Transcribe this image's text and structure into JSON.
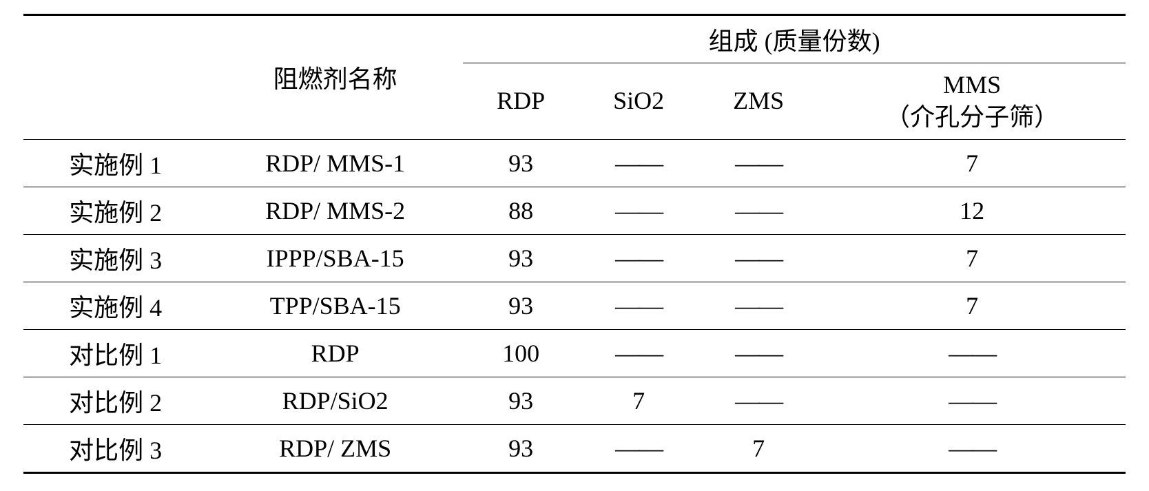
{
  "table": {
    "headers": {
      "col1_empty": "",
      "col2": "阻燃剂名称",
      "group_header": "组成 (质量份数)",
      "sub_col1": "RDP",
      "sub_col2": "SiO2",
      "sub_col3": "ZMS",
      "sub_col4_line1": "MMS",
      "sub_col4_line2": "（介孔分子筛）"
    },
    "dash": "——",
    "rows": [
      {
        "label": "实施例 1",
        "name": "RDP/ MMS-1",
        "rdp": "93",
        "sio2": "——",
        "zms": "——",
        "mms": "7"
      },
      {
        "label": "实施例 2",
        "name": "RDP/ MMS-2",
        "rdp": "88",
        "sio2": "——",
        "zms": "——",
        "mms": "12"
      },
      {
        "label": "实施例 3",
        "name": "IPPP/SBA-15",
        "rdp": "93",
        "sio2": "——",
        "zms": "——",
        "mms": "7"
      },
      {
        "label": "实施例 4",
        "name": "TPP/SBA-15",
        "rdp": "93",
        "sio2": "——",
        "zms": "——",
        "mms": "7"
      },
      {
        "label": "对比例 1",
        "name": "RDP",
        "rdp": "100",
        "sio2": "——",
        "zms": "——",
        "mms": "——"
      },
      {
        "label": "对比例 2",
        "name": "RDP/SiO2",
        "rdp": "93",
        "sio2": "7",
        "zms": "——",
        "mms": "——"
      },
      {
        "label": "对比例 3",
        "name": "RDP/ ZMS",
        "rdp": "93",
        "sio2": "——",
        "zms": "7",
        "mms": "——"
      }
    ]
  }
}
